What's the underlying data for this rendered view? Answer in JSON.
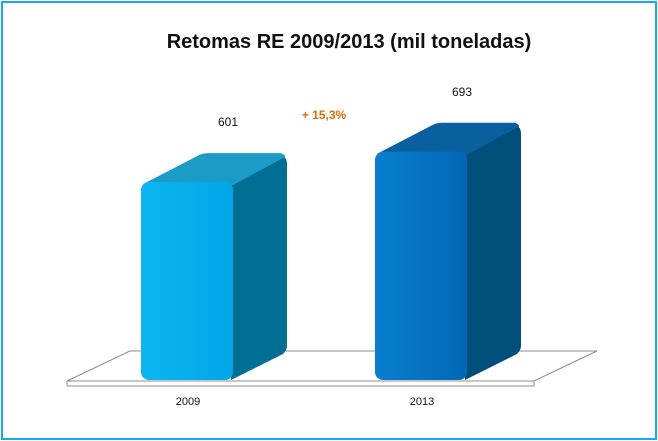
{
  "chart_data": {
    "type": "bar",
    "title": "Retomas RE 2009/2013  (mil toneladas)",
    "categories": [
      "2009",
      "2013"
    ],
    "values": [
      601,
      693
    ],
    "value_labels": [
      "601",
      "693"
    ],
    "annotation": "+ 15,3%",
    "annotation_color": "#e36c0a",
    "bar_colors": [
      "#00b0f0",
      "#0070c0"
    ],
    "border_color": "#1aa7ec",
    "grid": false,
    "legend": "none",
    "style": "3d"
  }
}
